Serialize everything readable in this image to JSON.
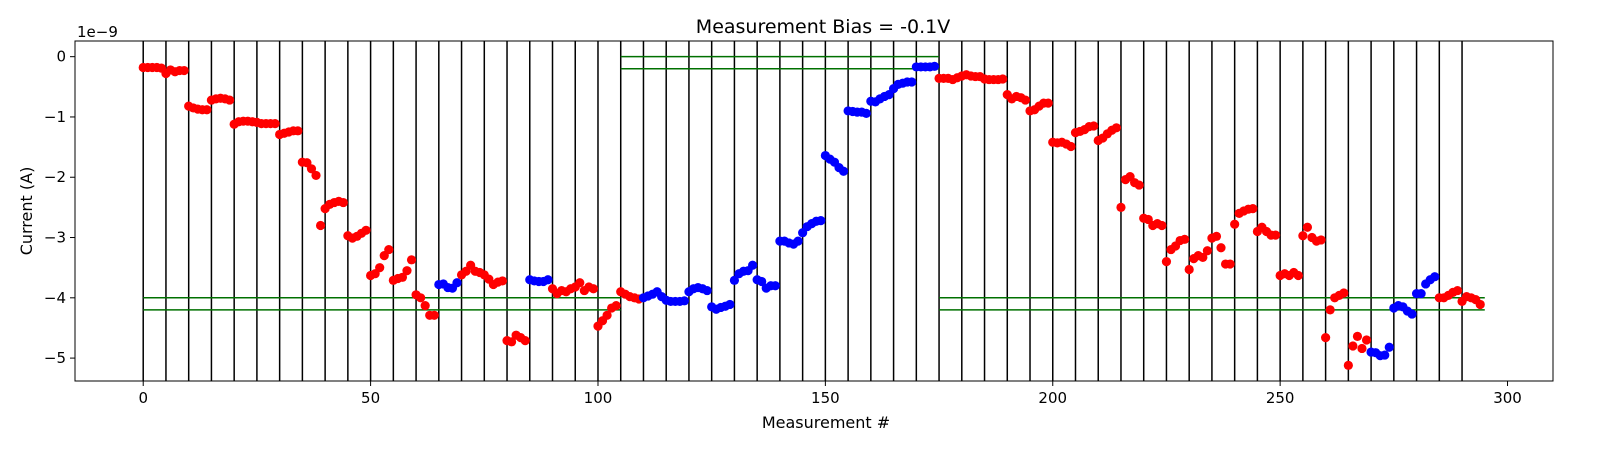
{
  "chart_data": {
    "type": "scatter",
    "title": "Measurement Bias = -0.1V",
    "xlabel": "Measurement #",
    "ylabel": "Current (A)",
    "y_offset_label": "1e−9",
    "xlim": [
      -15,
      310
    ],
    "ylim": [
      -5.38,
      0.26
    ],
    "x_ticks": [
      0,
      50,
      100,
      150,
      200,
      250,
      300
    ],
    "y_ticks": [
      0,
      -1,
      -2,
      -3,
      -4,
      -5
    ],
    "x_tick_labels": [
      "0",
      "50",
      "100",
      "150",
      "200",
      "250",
      "300"
    ],
    "y_tick_labels": [
      "0",
      "−1",
      "−2",
      "−3",
      "−4",
      "−5"
    ],
    "grid": false,
    "vertical_lines": [
      0,
      5,
      10,
      15,
      20,
      25,
      30,
      35,
      40,
      45,
      50,
      55,
      60,
      65,
      70,
      75,
      80,
      85,
      90,
      95,
      100,
      105,
      110,
      115,
      120,
      125,
      130,
      135,
      140,
      145,
      150,
      155,
      160,
      165,
      170,
      175,
      180,
      185,
      190,
      195,
      200,
      205,
      210,
      215,
      220,
      225,
      230,
      235,
      240,
      245,
      250,
      255,
      260,
      265,
      270,
      275,
      280,
      285,
      290
    ],
    "reference_lines": [
      {
        "x": [
          0,
          105
        ],
        "y": -4.0
      },
      {
        "x": [
          0,
          105
        ],
        "y": -4.2
      },
      {
        "x": [
          105,
          175
        ],
        "y": 0.0
      },
      {
        "x": [
          105,
          175
        ],
        "y": -0.2
      },
      {
        "x": [
          175,
          295
        ],
        "y": -4.0
      },
      {
        "x": [
          175,
          295
        ],
        "y": -4.2
      }
    ],
    "colors": {
      "red": "#ff0000",
      "blue": "#0000ff",
      "reference": "#007000",
      "divider": "#000000"
    },
    "segments": [
      {
        "start": 0,
        "color": "red",
        "y": [
          -0.18,
          -0.18,
          -0.18,
          -0.18,
          -0.19
        ]
      },
      {
        "start": 5,
        "color": "red",
        "y": [
          -0.28,
          -0.22,
          -0.25,
          -0.23,
          -0.23
        ]
      },
      {
        "start": 10,
        "color": "red",
        "y": [
          -0.82,
          -0.85,
          -0.87,
          -0.88,
          -0.88
        ]
      },
      {
        "start": 15,
        "color": "red",
        "y": [
          -0.72,
          -0.7,
          -0.69,
          -0.7,
          -0.72
        ]
      },
      {
        "start": 20,
        "color": "red",
        "y": [
          -1.12,
          -1.08,
          -1.07,
          -1.07,
          -1.08
        ]
      },
      {
        "start": 25,
        "color": "red",
        "y": [
          -1.09,
          -1.11,
          -1.11,
          -1.11,
          -1.11
        ]
      },
      {
        "start": 30,
        "color": "red",
        "y": [
          -1.29,
          -1.27,
          -1.25,
          -1.23,
          -1.23
        ]
      },
      {
        "start": 35,
        "color": "red",
        "y": [
          -1.75,
          -1.76,
          -1.86,
          -1.97,
          -2.8
        ]
      },
      {
        "start": 40,
        "color": "red",
        "y": [
          -2.52,
          -2.45,
          -2.42,
          -2.4,
          -2.42
        ]
      },
      {
        "start": 45,
        "color": "red",
        "y": [
          -2.97,
          -3.01,
          -2.98,
          -2.93,
          -2.88
        ]
      },
      {
        "start": 50,
        "color": "red",
        "y": [
          -3.63,
          -3.6,
          -3.5,
          -3.3,
          -3.2
        ]
      },
      {
        "start": 55,
        "color": "red",
        "y": [
          -3.71,
          -3.68,
          -3.66,
          -3.55,
          -3.37
        ]
      },
      {
        "start": 60,
        "color": "red",
        "y": [
          -3.95,
          -4.0,
          -4.13,
          -4.29,
          -4.29
        ]
      },
      {
        "start": 65,
        "color": "blue",
        "y": [
          -3.78,
          -3.77,
          -3.83,
          -3.84,
          -3.75
        ]
      },
      {
        "start": 70,
        "color": "red",
        "y": [
          -3.62,
          -3.56,
          -3.46,
          -3.56,
          -3.58
        ]
      },
      {
        "start": 75,
        "color": "red",
        "y": [
          -3.62,
          -3.69,
          -3.78,
          -3.74,
          -3.72
        ]
      },
      {
        "start": 80,
        "color": "red",
        "y": [
          -4.71,
          -4.73,
          -4.62,
          -4.66,
          -4.71
        ]
      },
      {
        "start": 85,
        "color": "blue",
        "y": [
          -3.7,
          -3.72,
          -3.73,
          -3.73,
          -3.7
        ]
      },
      {
        "start": 90,
        "color": "red",
        "y": [
          -3.85,
          -3.93,
          -3.88,
          -3.9,
          -3.85
        ]
      },
      {
        "start": 95,
        "color": "red",
        "y": [
          -3.82,
          -3.75,
          -3.88,
          -3.82,
          -3.85
        ]
      },
      {
        "start": 100,
        "color": "red",
        "y": [
          -4.47,
          -4.38,
          -4.29,
          -4.17,
          -4.13
        ]
      },
      {
        "start": 105,
        "color": "red",
        "y": [
          -3.9,
          -3.94,
          -3.98,
          -4.0,
          -4.02
        ]
      },
      {
        "start": 110,
        "color": "blue",
        "y": [
          -4.0,
          -3.97,
          -3.94,
          -3.9,
          -3.98
        ]
      },
      {
        "start": 115,
        "color": "blue",
        "y": [
          -4.04,
          -4.06,
          -4.06,
          -4.06,
          -4.05
        ]
      },
      {
        "start": 120,
        "color": "blue",
        "y": [
          -3.9,
          -3.85,
          -3.83,
          -3.85,
          -3.88
        ]
      },
      {
        "start": 125,
        "color": "blue",
        "y": [
          -4.15,
          -4.19,
          -4.16,
          -4.14,
          -4.11
        ]
      },
      {
        "start": 130,
        "color": "blue",
        "y": [
          -3.71,
          -3.6,
          -3.56,
          -3.55,
          -3.46
        ]
      },
      {
        "start": 135,
        "color": "blue",
        "y": [
          -3.7,
          -3.73,
          -3.84,
          -3.8,
          -3.8
        ]
      },
      {
        "start": 140,
        "color": "blue",
        "y": [
          -3.06,
          -3.06,
          -3.09,
          -3.11,
          -3.06
        ]
      },
      {
        "start": 145,
        "color": "blue",
        "y": [
          -2.92,
          -2.82,
          -2.77,
          -2.73,
          -2.72
        ]
      },
      {
        "start": 150,
        "color": "blue",
        "y": [
          -1.64,
          -1.7,
          -1.75,
          -1.84,
          -1.9
        ]
      },
      {
        "start": 155,
        "color": "blue",
        "y": [
          -0.9,
          -0.91,
          -0.92,
          -0.92,
          -0.94
        ]
      },
      {
        "start": 160,
        "color": "blue",
        "y": [
          -0.74,
          -0.75,
          -0.7,
          -0.66,
          -0.63
        ]
      },
      {
        "start": 165,
        "color": "blue",
        "y": [
          -0.53,
          -0.46,
          -0.44,
          -0.42,
          -0.42
        ]
      },
      {
        "start": 170,
        "color": "blue",
        "y": [
          -0.17,
          -0.17,
          -0.17,
          -0.17,
          -0.16
        ]
      },
      {
        "start": 175,
        "color": "red",
        "y": [
          -0.36,
          -0.36,
          -0.36,
          -0.38,
          -0.35
        ]
      },
      {
        "start": 180,
        "color": "red",
        "y": [
          -0.32,
          -0.3,
          -0.32,
          -0.33,
          -0.33
        ]
      },
      {
        "start": 185,
        "color": "red",
        "y": [
          -0.37,
          -0.38,
          -0.38,
          -0.38,
          -0.37
        ]
      },
      {
        "start": 190,
        "color": "red",
        "y": [
          -0.63,
          -0.7,
          -0.66,
          -0.68,
          -0.72
        ]
      },
      {
        "start": 195,
        "color": "red",
        "y": [
          -0.9,
          -0.88,
          -0.82,
          -0.77,
          -0.77
        ]
      },
      {
        "start": 200,
        "color": "red",
        "y": [
          -1.42,
          -1.43,
          -1.42,
          -1.45,
          -1.49
        ]
      },
      {
        "start": 205,
        "color": "red",
        "y": [
          -1.26,
          -1.24,
          -1.21,
          -1.16,
          -1.15
        ]
      },
      {
        "start": 210,
        "color": "red",
        "y": [
          -1.39,
          -1.35,
          -1.28,
          -1.22,
          -1.18
        ]
      },
      {
        "start": 215,
        "color": "red",
        "y": [
          -2.5,
          -2.04,
          -1.99,
          -2.09,
          -2.13
        ]
      },
      {
        "start": 220,
        "color": "red",
        "y": [
          -2.68,
          -2.7,
          -2.8,
          -2.77,
          -2.8
        ]
      },
      {
        "start": 225,
        "color": "red",
        "y": [
          -3.4,
          -3.2,
          -3.14,
          -3.05,
          -3.03
        ]
      },
      {
        "start": 230,
        "color": "red",
        "y": [
          -3.53,
          -3.35,
          -3.3,
          -3.33,
          -3.22
        ]
      },
      {
        "start": 235,
        "color": "red",
        "y": [
          -3.01,
          -2.98,
          -3.17,
          -3.44,
          -3.44
        ]
      },
      {
        "start": 240,
        "color": "red",
        "y": [
          -2.78,
          -2.6,
          -2.56,
          -2.53,
          -2.52
        ]
      },
      {
        "start": 245,
        "color": "red",
        "y": [
          -2.9,
          -2.83,
          -2.9,
          -2.96,
          -2.96
        ]
      },
      {
        "start": 250,
        "color": "red",
        "y": [
          -3.63,
          -3.6,
          -3.63,
          -3.58,
          -3.63
        ]
      },
      {
        "start": 255,
        "color": "red",
        "y": [
          -2.97,
          -2.83,
          -3.0,
          -3.06,
          -3.04
        ]
      },
      {
        "start": 260,
        "color": "red",
        "y": [
          -4.66,
          -4.2,
          -4.0,
          -3.96,
          -3.92
        ]
      },
      {
        "start": 265,
        "color": "red",
        "y": [
          -5.12,
          -4.8,
          -4.64,
          -4.84,
          -4.7
        ]
      },
      {
        "start": 270,
        "color": "blue",
        "y": [
          -4.9,
          -4.91,
          -4.96,
          -4.95,
          -4.82
        ]
      },
      {
        "start": 275,
        "color": "blue",
        "y": [
          -4.17,
          -4.13,
          -4.15,
          -4.22,
          -4.27
        ]
      },
      {
        "start": 280,
        "color": "blue",
        "y": [
          -3.93,
          -3.93,
          -3.77,
          -3.7,
          -3.65
        ]
      },
      {
        "start": 285,
        "color": "red",
        "y": [
          -4.0,
          -4.0,
          -3.96,
          -3.91,
          -3.88
        ]
      },
      {
        "start": 290,
        "color": "red",
        "y": [
          -4.06,
          -3.98,
          -4.0,
          -4.03,
          -4.11
        ]
      }
    ]
  }
}
